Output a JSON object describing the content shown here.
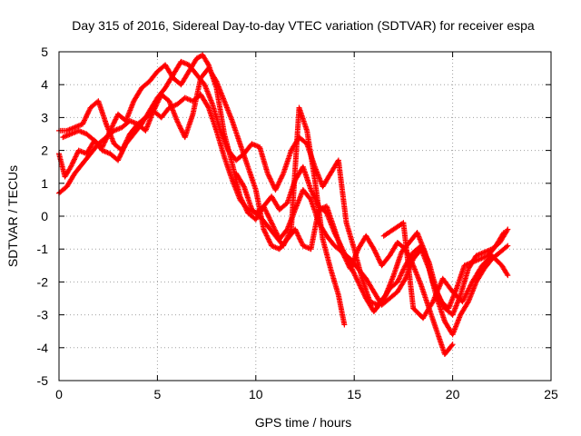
{
  "chart_data": {
    "type": "scatter",
    "title": "Day 315 of 2016, Sidereal Day-to-day VTEC variation (SDTVAR) for receiver espa",
    "xlabel": "GPS time / hours",
    "ylabel": "SDTVAR / TECUs",
    "xlim": [
      0,
      25
    ],
    "ylim": [
      -5,
      5
    ],
    "xticks": [
      0,
      5,
      10,
      15,
      20,
      25
    ],
    "yticks": [
      -5,
      -4,
      -3,
      -2,
      -1,
      0,
      1,
      2,
      3,
      4,
      5
    ],
    "grid": true,
    "legend": "none",
    "marker": "+",
    "series": [
      {
        "color": "#ff0000",
        "x": [
          0.0,
          0.3,
          0.6,
          1.0,
          1.4,
          1.8,
          2.2,
          2.6,
          3.0,
          3.4,
          3.8,
          4.2,
          4.6,
          5.0,
          5.4,
          5.8,
          6.2,
          6.6,
          7.0,
          7.3,
          7.6,
          8.0,
          8.4,
          8.8,
          9.2,
          9.6,
          10.0,
          10.4,
          10.8,
          11.2,
          11.6,
          12.0,
          12.4,
          12.8,
          13.2,
          13.6,
          14.0,
          14.4,
          14.8,
          15.2,
          15.6,
          16.0,
          16.4,
          16.8,
          17.2,
          17.6,
          18.0,
          18.4,
          18.8,
          19.2,
          19.6,
          20.0,
          20.4,
          20.8,
          21.2,
          21.6,
          22.0,
          22.4,
          22.8
        ],
        "y": [
          1.9,
          1.2,
          1.5,
          2.0,
          1.9,
          2.3,
          2.1,
          2.6,
          3.1,
          2.9,
          3.5,
          3.9,
          4.1,
          4.4,
          4.6,
          4.2,
          4.0,
          4.4,
          4.8,
          4.9,
          4.6,
          3.9,
          2.5,
          1.6,
          0.6,
          0.1,
          -0.1,
          0.3,
          0.6,
          0.2,
          0.4,
          1.1,
          1.5,
          0.8,
          0.3,
          0.1,
          -0.5,
          -1.0,
          -1.5,
          -2.0,
          -2.5,
          -2.9,
          -2.6,
          -2.2,
          -2.0,
          -1.5,
          -1.1,
          -0.9,
          -1.4,
          -2.3,
          -2.8,
          -3.0,
          -2.4,
          -1.6,
          -1.2,
          -1.1,
          -1.0,
          -0.8,
          -0.4
        ]
      },
      {
        "color": "#ff0000",
        "x": [
          0.0,
          0.4,
          0.8,
          1.2,
          1.6,
          2.0,
          2.4,
          2.8,
          3.2,
          3.6,
          4.0,
          4.4,
          4.8,
          5.2,
          5.6,
          6.0,
          6.4,
          6.8,
          7.2,
          7.6,
          8.0,
          8.4,
          8.8,
          9.2,
          9.6,
          10.0,
          10.4,
          10.8,
          11.2,
          11.6,
          12.0,
          12.4,
          12.8,
          13.2,
          13.6,
          14.0,
          14.4,
          14.8,
          15.2,
          15.6,
          16.0,
          16.4,
          16.8,
          17.2,
          17.6,
          18.0,
          18.4,
          18.8,
          19.2,
          19.6,
          20.0,
          20.4,
          20.8,
          21.2,
          21.6,
          22.0,
          22.4,
          22.8
        ],
        "y": [
          0.7,
          0.9,
          1.3,
          1.6,
          1.9,
          2.2,
          2.4,
          2.6,
          2.7,
          2.9,
          2.8,
          3.0,
          3.2,
          3.0,
          3.3,
          3.4,
          3.6,
          3.5,
          3.7,
          3.3,
          2.6,
          1.8,
          1.1,
          0.5,
          0.2,
          0.1,
          0.3,
          -0.2,
          -0.7,
          -0.4,
          0.2,
          0.8,
          0.5,
          -0.2,
          -0.6,
          -0.9,
          -1.1,
          -1.3,
          -1.6,
          -1.9,
          -2.3,
          -2.7,
          -2.5,
          -2.3,
          -1.9,
          -1.3,
          -1.0,
          -1.6,
          -2.5,
          -3.2,
          -3.6,
          -3.0,
          -2.6,
          -2.0,
          -1.6,
          -1.3,
          -1.1,
          -0.9
        ]
      },
      {
        "color": "#ff0000",
        "x": [
          0.0,
          0.4,
          0.8,
          1.2,
          1.6,
          2.0,
          2.4,
          2.8,
          3.2,
          3.6,
          4.0,
          4.4,
          4.8,
          5.2,
          5.6,
          6.0,
          6.4,
          6.8,
          7.2,
          7.6,
          8.0,
          8.4,
          8.8,
          9.2,
          9.6,
          10.0,
          10.4,
          10.8,
          11.2,
          11.6,
          12.0,
          12.4,
          12.8,
          13.2,
          13.6,
          14.0,
          14.4,
          14.8,
          15.2,
          15.6,
          16.0,
          16.4,
          16.8,
          17.2,
          17.6,
          18.0,
          18.4,
          18.8,
          19.2,
          19.6,
          20.0
        ],
        "y": [
          2.6,
          2.6,
          2.7,
          2.8,
          3.3,
          3.5,
          2.8,
          2.2,
          2.0,
          2.5,
          2.8,
          2.6,
          3.2,
          3.7,
          3.5,
          2.9,
          2.4,
          3.1,
          4.2,
          4.5,
          4.1,
          3.5,
          2.9,
          2.2,
          1.5,
          0.8,
          -0.4,
          -0.9,
          -1.0,
          -0.7,
          -0.4,
          -0.9,
          -1.0,
          0.2,
          0.3,
          -0.4,
          -1.1,
          -1.6,
          -1.0,
          -0.6,
          -1.0,
          -1.5,
          -1.2,
          -0.8,
          -1.0,
          -1.5,
          -2.1,
          -2.8,
          -3.5,
          -4.2,
          -3.9
        ]
      },
      {
        "color": "#ff0000",
        "x": [
          0.2,
          0.6,
          1.0,
          1.4,
          1.8,
          2.2,
          2.6,
          3.0,
          3.4,
          3.8,
          4.2,
          4.6,
          5.0,
          5.4,
          5.8,
          6.2,
          6.6,
          7.0,
          7.4,
          7.8,
          8.2,
          8.6,
          9.0,
          9.4,
          9.8,
          10.2,
          10.6,
          11.0,
          11.4,
          11.8,
          12.2,
          12.6,
          13.0,
          13.4,
          13.8,
          14.2,
          14.6,
          15.0,
          15.4,
          15.8,
          16.2,
          16.6,
          17.0,
          17.4,
          17.8,
          18.2,
          18.6,
          19.0,
          19.4,
          19.8,
          20.2,
          20.6,
          21.0,
          21.4,
          21.8,
          22.2,
          22.6
        ],
        "y": [
          2.4,
          2.5,
          2.6,
          2.5,
          2.3,
          2.0,
          1.9,
          1.7,
          2.2,
          2.5,
          2.8,
          3.2,
          3.6,
          3.9,
          4.3,
          4.7,
          4.6,
          4.3,
          4.0,
          3.4,
          2.6,
          2.0,
          1.7,
          1.9,
          2.2,
          2.1,
          1.3,
          0.8,
          1.3,
          2.0,
          2.4,
          2.2,
          1.5,
          0.9,
          1.3,
          1.7,
          -0.2,
          -1.0,
          -1.9,
          -2.6,
          -2.7,
          -2.4,
          -1.8,
          -1.1,
          -0.8,
          -0.5,
          -1.1,
          -2.0,
          -2.6,
          -2.8,
          -2.2,
          -1.5,
          -1.4,
          -1.3,
          -1.2,
          -0.9,
          -0.5
        ]
      },
      {
        "color": "#ff0000",
        "x": [
          9.0,
          9.4,
          9.8,
          10.2,
          10.6,
          11.0,
          11.4,
          11.8,
          12.2,
          12.6,
          13.0,
          13.4,
          13.8,
          14.2,
          14.5
        ],
        "y": [
          1.3,
          0.9,
          0.2,
          0.0,
          -0.3,
          -0.6,
          -0.9,
          -0.4,
          3.3,
          2.6,
          1.1,
          -0.7,
          -1.6,
          -2.4,
          -3.3
        ]
      },
      {
        "color": "#ff0000",
        "x": [
          16.5,
          17.0,
          17.5,
          18.0,
          18.5,
          19.0,
          19.5,
          20.0,
          20.5,
          21.0,
          21.5,
          22.0,
          22.5,
          22.8
        ],
        "y": [
          -0.6,
          -0.4,
          -0.2,
          -2.8,
          -3.1,
          -2.6,
          -1.9,
          -2.3,
          -2.6,
          -2.0,
          -1.5,
          -1.2,
          -1.5,
          -1.8
        ]
      }
    ]
  }
}
